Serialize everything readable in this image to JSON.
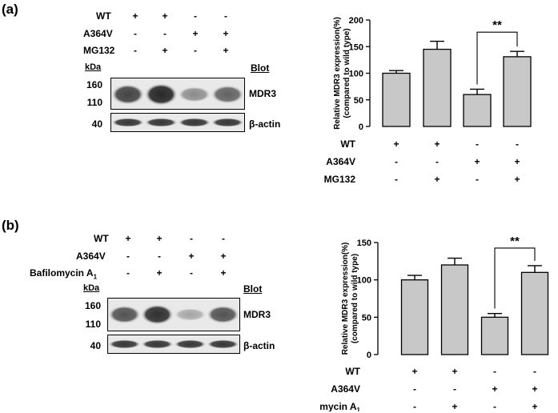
{
  "panels": [
    {
      "label": "(a)",
      "conditions": [
        {
          "name": "WT",
          "signs": [
            "+",
            "+",
            "-",
            "-"
          ]
        },
        {
          "name": "A364V",
          "signs": [
            "-",
            "-",
            "+",
            "+"
          ]
        },
        {
          "name": "MG132",
          "signs": [
            "-",
            "+",
            "-",
            "+"
          ]
        }
      ],
      "blot": {
        "kda_label": "kDa",
        "blot_header": "Blot",
        "markers": [
          "160",
          "110",
          "40"
        ],
        "bands": [
          "MDR3",
          "β-actin"
        ],
        "mdr3_intensity": [
          0.82,
          1.0,
          0.35,
          0.62
        ]
      },
      "chart_data": {
        "type": "bar",
        "ylabel": "Relative MDR3 expression(%)",
        "ylabel2": "(compared to wild type)",
        "ylim": [
          0,
          200
        ],
        "yticks": [
          "0",
          "50",
          "100",
          "150",
          "200"
        ],
        "values": [
          100,
          145,
          60,
          131
        ],
        "errors": [
          5,
          15,
          10,
          10
        ],
        "significance": {
          "between": [
            2,
            3
          ],
          "label": "**"
        },
        "conditions": [
          {
            "name": "WT",
            "signs": [
              "+",
              "+",
              "-",
              "-"
            ]
          },
          {
            "name": "A364V",
            "signs": [
              "-",
              "-",
              "+",
              "+"
            ]
          },
          {
            "name": "MG132",
            "signs": [
              "-",
              "+",
              "-",
              "+"
            ]
          }
        ]
      }
    },
    {
      "label": "(b)",
      "conditions": [
        {
          "name": "WT",
          "signs": [
            "+",
            "+",
            "-",
            "-"
          ]
        },
        {
          "name": "A364V",
          "signs": [
            "-",
            "-",
            "+",
            "+"
          ]
        },
        {
          "name": "Bafilomycin A",
          "sub": "1",
          "signs": [
            "-",
            "+",
            "-",
            "+"
          ]
        }
      ],
      "blot": {
        "kda_label": "kDa",
        "blot_header": "Blot",
        "markers": [
          "160",
          "110",
          "40"
        ],
        "bands": [
          "MDR3",
          "β-actin"
        ],
        "mdr3_intensity": [
          0.72,
          0.95,
          0.18,
          0.72
        ]
      },
      "chart_data": {
        "type": "bar",
        "ylabel": "Relative MDR3 expression(%)",
        "ylabel2": "(compared to wild type)",
        "ylim": [
          0,
          150
        ],
        "yticks": [
          "0",
          "50",
          "100",
          "150"
        ],
        "values": [
          100,
          120,
          50,
          110
        ],
        "errors": [
          6,
          9,
          5,
          9
        ],
        "significance": {
          "between": [
            2,
            3
          ],
          "label": "**"
        },
        "conditions": [
          {
            "name": "WT",
            "signs": [
              "+",
              "+",
              "-",
              "-"
            ]
          },
          {
            "name": "A364V",
            "signs": [
              "-",
              "-",
              "+",
              "+"
            ]
          },
          {
            "name": "Bafilomycin A",
            "sub": "1",
            "signs": [
              "-",
              "+",
              "-",
              "+"
            ]
          }
        ]
      }
    }
  ]
}
